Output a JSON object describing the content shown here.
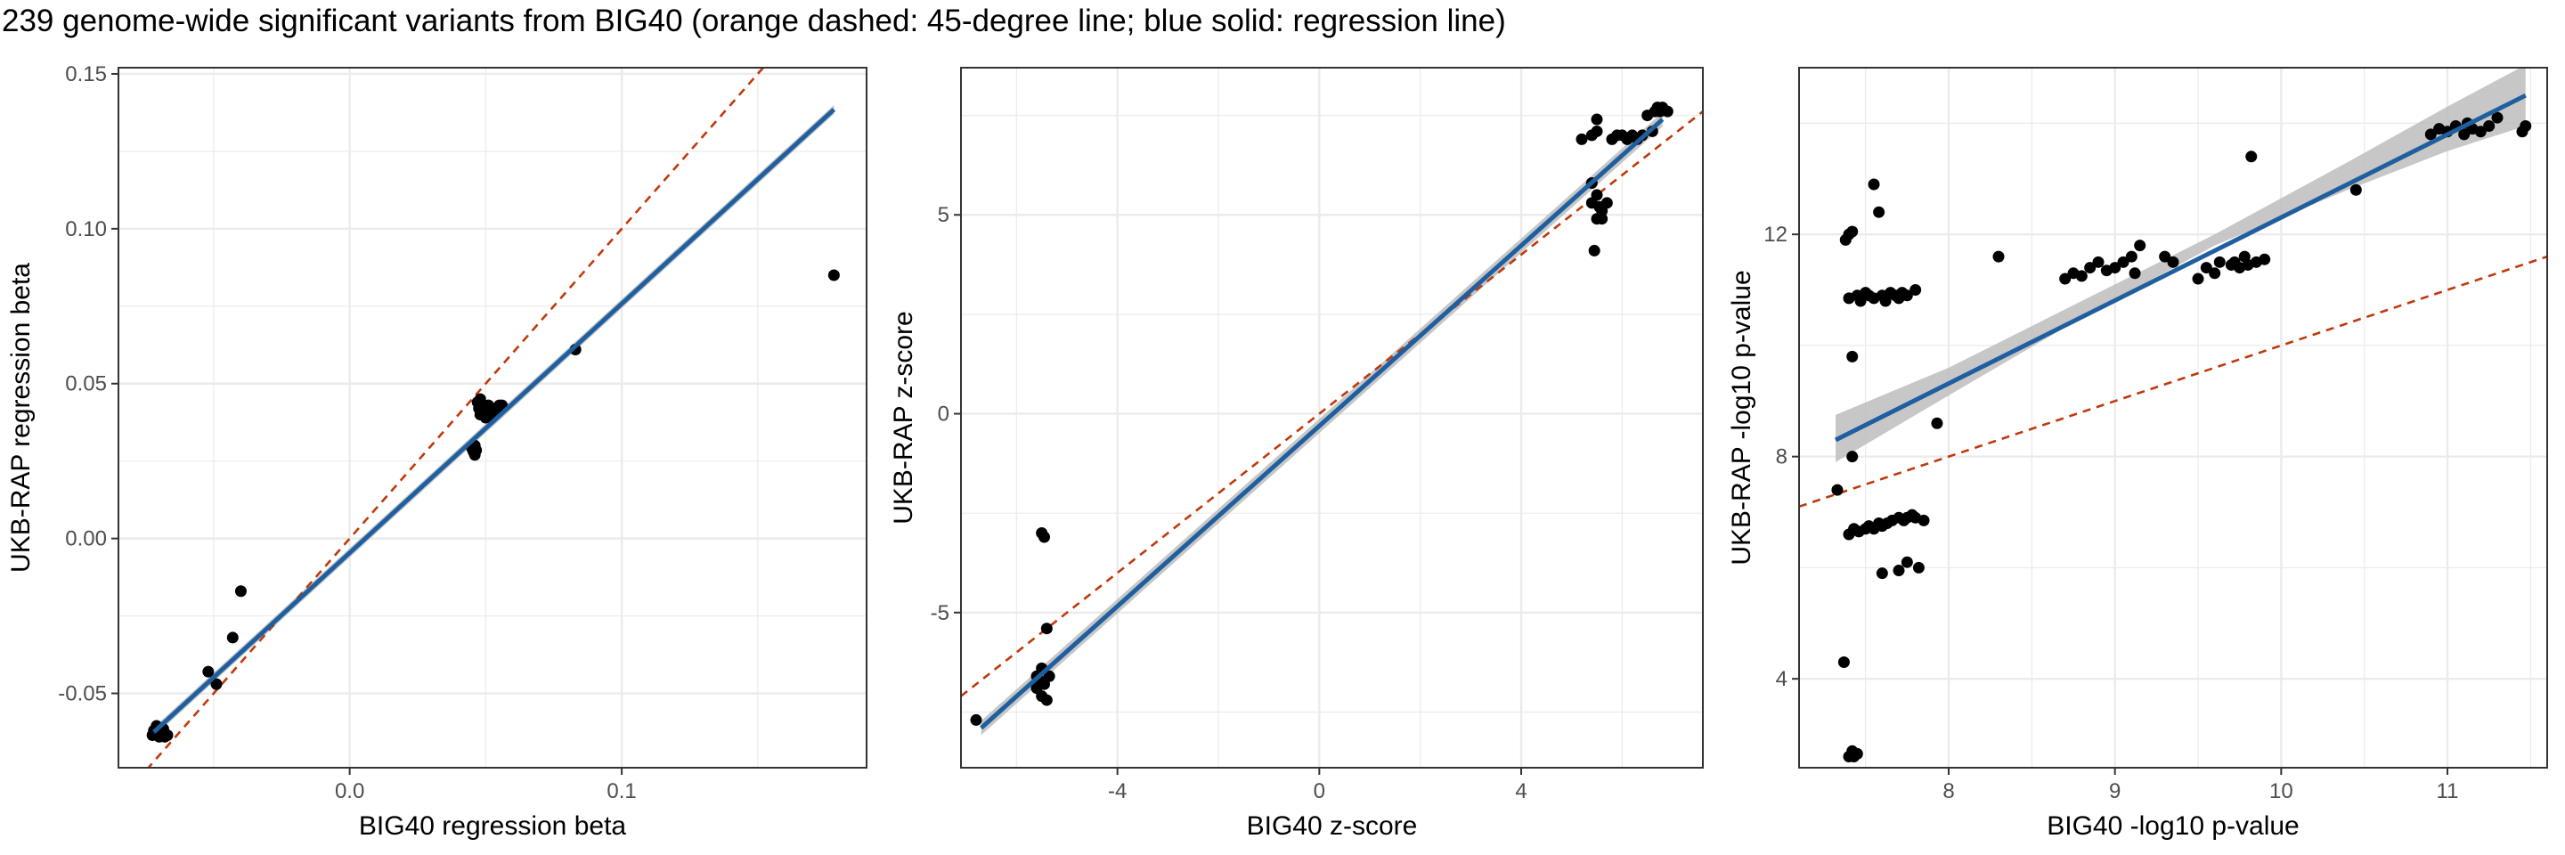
{
  "title": "239 genome-wide significant variants from BIG40 (orange dashed: 45-degree line; blue solid: regression line)",
  "colors": {
    "points": "#000000",
    "identity_line": "#C0390B",
    "regression_line": "#1F5FA0",
    "ci_band": "#BDBDBD",
    "grid": "#EBEBEB",
    "panel_border": "#333333"
  },
  "chart_data": [
    {
      "type": "scatter",
      "xlabel": "BIG40 regression beta",
      "ylabel": "UKB-RAP regression beta",
      "xlim": [
        -0.085,
        0.19
      ],
      "ylim": [
        -0.074,
        0.152
      ],
      "xticks": [
        0.0,
        0.1
      ],
      "xtick_labels": [
        "0.0",
        "0.1"
      ],
      "yticks": [
        -0.05,
        0.0,
        0.05,
        0.1,
        0.15
      ],
      "ytick_labels": [
        "-0.05",
        "0.00",
        "0.05",
        "0.10",
        "0.15"
      ],
      "identity_line": {
        "slope": 1,
        "intercept": 0
      },
      "regression_line": {
        "x": [
          -0.072,
          0.178
        ],
        "y": [
          -0.0625,
          0.1385
        ]
      },
      "ci_halfwidth": 0.0015,
      "points": [
        [
          -0.072,
          -0.062
        ],
        [
          -0.0715,
          -0.0625
        ],
        [
          -0.071,
          -0.0605
        ],
        [
          -0.0705,
          -0.063
        ],
        [
          -0.07,
          -0.0615
        ],
        [
          -0.0695,
          -0.062
        ],
        [
          -0.069,
          -0.063
        ],
        [
          -0.0685,
          -0.0615
        ],
        [
          -0.068,
          -0.064
        ],
        [
          -0.067,
          -0.0635
        ],
        [
          -0.0725,
          -0.0635
        ],
        [
          -0.07,
          -0.064
        ],
        [
          -0.052,
          -0.043
        ],
        [
          -0.049,
          -0.047
        ],
        [
          -0.043,
          -0.032
        ],
        [
          -0.04,
          -0.017
        ],
        [
          0.045,
          0.029
        ],
        [
          0.0455,
          0.028
        ],
        [
          0.046,
          0.027
        ],
        [
          0.046,
          0.03
        ],
        [
          0.0465,
          0.0285
        ],
        [
          0.047,
          0.044
        ],
        [
          0.0475,
          0.042
        ],
        [
          0.048,
          0.04
        ],
        [
          0.048,
          0.045
        ],
        [
          0.0485,
          0.041
        ],
        [
          0.049,
          0.043
        ],
        [
          0.05,
          0.039
        ],
        [
          0.05,
          0.042
        ],
        [
          0.051,
          0.043
        ],
        [
          0.052,
          0.04
        ],
        [
          0.053,
          0.041
        ],
        [
          0.054,
          0.042
        ],
        [
          0.055,
          0.043
        ],
        [
          0.056,
          0.043
        ],
        [
          0.083,
          0.061
        ],
        [
          0.178,
          0.085
        ]
      ]
    },
    {
      "type": "scatter",
      "xlabel": "BIG40 z-score",
      "ylabel": "UKB-RAP z-score",
      "xlim": [
        -7.1,
        7.6
      ],
      "ylim": [
        -8.9,
        8.7
      ],
      "xticks": [
        -4,
        0,
        4
      ],
      "xtick_labels": [
        "-4",
        "0",
        "4"
      ],
      "yticks": [
        -5,
        0,
        5
      ],
      "ytick_labels": [
        "-5",
        "0",
        "5"
      ],
      "identity_line": {
        "slope": 1,
        "intercept": 0
      },
      "regression_line": {
        "x": [
          -6.7,
          6.8
        ],
        "y": [
          -7.9,
          7.4
        ]
      },
      "ci_halfwidth": 0.18,
      "points": [
        [
          -6.8,
          -7.7
        ],
        [
          -5.5,
          -3.0
        ],
        [
          -5.45,
          -3.1
        ],
        [
          -5.4,
          -5.4
        ],
        [
          -5.5,
          -6.4
        ],
        [
          -5.55,
          -6.7
        ],
        [
          -5.6,
          -6.9
        ],
        [
          -5.45,
          -6.8
        ],
        [
          -5.5,
          -7.1
        ],
        [
          -5.4,
          -7.2
        ],
        [
          -5.35,
          -6.6
        ],
        [
          -5.6,
          -6.6
        ],
        [
          5.4,
          7.0
        ],
        [
          5.5,
          7.4
        ],
        [
          5.5,
          7.1
        ],
        [
          5.4,
          5.8
        ],
        [
          5.5,
          5.5
        ],
        [
          5.55,
          5.2
        ],
        [
          5.6,
          5.1
        ],
        [
          5.5,
          4.9
        ],
        [
          5.6,
          4.9
        ],
        [
          5.45,
          4.1
        ],
        [
          5.4,
          5.3
        ],
        [
          5.7,
          5.3
        ],
        [
          5.8,
          6.9
        ],
        [
          5.9,
          7.0
        ],
        [
          6.0,
          7.0
        ],
        [
          6.1,
          6.9
        ],
        [
          6.2,
          7.0
        ],
        [
          6.3,
          6.9
        ],
        [
          6.4,
          7.0
        ],
        [
          6.5,
          7.5
        ],
        [
          6.6,
          7.1
        ],
        [
          6.65,
          7.6
        ],
        [
          6.7,
          7.7
        ],
        [
          6.8,
          7.7
        ],
        [
          6.9,
          7.6
        ],
        [
          6.75,
          7.6
        ],
        [
          5.2,
          6.9
        ]
      ]
    },
    {
      "type": "scatter",
      "xlabel": "BIG40 -log10 p-value",
      "ylabel": "UKB-RAP -log10 p-value",
      "xlim": [
        7.1,
        11.6
      ],
      "ylim": [
        2.4,
        15.0
      ],
      "xticks": [
        8,
        9,
        10,
        11
      ],
      "xtick_labels": [
        "8",
        "9",
        "10",
        "11"
      ],
      "yticks": [
        4,
        8,
        12
      ],
      "ytick_labels": [
        "4",
        "8",
        "12"
      ],
      "identity_line": {
        "slope": 1,
        "intercept": 0
      },
      "regression_line": {
        "x": [
          7.32,
          11.47
        ],
        "y": [
          8.3,
          14.5
        ]
      },
      "ci_band": {
        "x": [
          7.32,
          8.0,
          8.8,
          9.6,
          10.4,
          11.0,
          11.47
        ],
        "lo": [
          7.9,
          9.1,
          10.5,
          11.8,
          12.8,
          13.5,
          13.95
        ],
        "hi": [
          8.75,
          9.6,
          10.8,
          12.0,
          13.3,
          14.3,
          15.05
        ]
      },
      "points": [
        [
          7.33,
          7.4
        ],
        [
          7.37,
          4.3
        ],
        [
          7.4,
          2.6
        ],
        [
          7.42,
          2.7
        ],
        [
          7.43,
          2.6
        ],
        [
          7.45,
          2.65
        ],
        [
          7.38,
          11.9
        ],
        [
          7.4,
          12.0
        ],
        [
          7.42,
          12.05
        ],
        [
          7.4,
          10.85
        ],
        [
          7.45,
          10.9
        ],
        [
          7.47,
          10.8
        ],
        [
          7.5,
          10.95
        ],
        [
          7.52,
          10.9
        ],
        [
          7.55,
          10.85
        ],
        [
          7.6,
          10.9
        ],
        [
          7.62,
          10.8
        ],
        [
          7.65,
          10.95
        ],
        [
          7.68,
          10.9
        ],
        [
          7.7,
          10.85
        ],
        [
          7.72,
          10.95
        ],
        [
          7.75,
          10.9
        ],
        [
          7.8,
          11.0
        ],
        [
          7.42,
          9.8
        ],
        [
          7.55,
          12.9
        ],
        [
          7.58,
          12.4
        ],
        [
          7.42,
          8.0
        ],
        [
          7.4,
          6.6
        ],
        [
          7.43,
          6.7
        ],
        [
          7.46,
          6.65
        ],
        [
          7.5,
          6.7
        ],
        [
          7.52,
          6.75
        ],
        [
          7.55,
          6.7
        ],
        [
          7.58,
          6.8
        ],
        [
          7.6,
          6.75
        ],
        [
          7.63,
          6.8
        ],
        [
          7.66,
          6.85
        ],
        [
          7.7,
          6.9
        ],
        [
          7.73,
          6.85
        ],
        [
          7.75,
          6.9
        ],
        [
          7.78,
          6.95
        ],
        [
          7.8,
          6.9
        ],
        [
          7.85,
          6.85
        ],
        [
          7.6,
          5.9
        ],
        [
          7.7,
          5.95
        ],
        [
          7.75,
          6.1
        ],
        [
          7.82,
          6.0
        ],
        [
          7.93,
          8.6
        ],
        [
          8.3,
          11.6
        ],
        [
          8.7,
          11.2
        ],
        [
          8.75,
          11.3
        ],
        [
          8.8,
          11.25
        ],
        [
          8.85,
          11.4
        ],
        [
          8.9,
          11.5
        ],
        [
          8.95,
          11.35
        ],
        [
          9.0,
          11.4
        ],
        [
          9.05,
          11.5
        ],
        [
          9.1,
          11.6
        ],
        [
          9.12,
          11.3
        ],
        [
          9.15,
          11.8
        ],
        [
          9.3,
          11.6
        ],
        [
          9.35,
          11.5
        ],
        [
          9.5,
          11.2
        ],
        [
          9.55,
          11.4
        ],
        [
          9.6,
          11.3
        ],
        [
          9.63,
          11.5
        ],
        [
          9.7,
          11.45
        ],
        [
          9.72,
          11.5
        ],
        [
          9.75,
          11.4
        ],
        [
          9.78,
          11.6
        ],
        [
          9.8,
          11.45
        ],
        [
          9.85,
          11.5
        ],
        [
          9.9,
          11.55
        ],
        [
          9.82,
          13.4
        ],
        [
          10.45,
          12.8
        ],
        [
          10.9,
          13.8
        ],
        [
          10.95,
          13.9
        ],
        [
          11.0,
          13.85
        ],
        [
          11.05,
          13.95
        ],
        [
          11.1,
          13.8
        ],
        [
          11.12,
          14.0
        ],
        [
          11.15,
          13.9
        ],
        [
          11.2,
          13.85
        ],
        [
          11.25,
          13.95
        ],
        [
          11.3,
          14.1
        ],
        [
          11.45,
          13.85
        ],
        [
          11.47,
          13.95
        ]
      ]
    }
  ]
}
